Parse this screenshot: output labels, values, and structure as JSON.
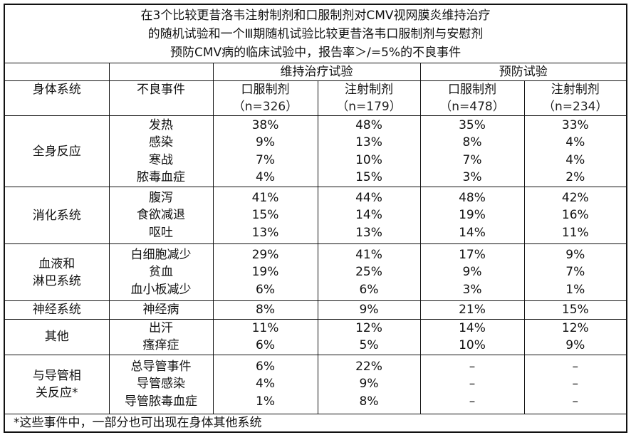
{
  "title_lines": [
    "在3个比较更昔洛韦注射制剂和口服制剂对CMV视网膜炎维持治疗",
    "的随机试验和一个Ⅲ期随机试验比较更昔洛韦口服制剂与安慰剂",
    "预防CMV病的临床试验中，报告率＞/=5%的不良事件"
  ],
  "header": {
    "body_system": "身体系统",
    "adverse_event": "不良事件",
    "maintenance_trial": "维持治疗试验",
    "prevention_trial": "预防试验",
    "columns": [
      {
        "label": "口服制剂",
        "n": "（n=326）"
      },
      {
        "label": "注射制剂",
        "n": "（n=179）"
      },
      {
        "label": "口服制剂",
        "n": "（n=478）"
      },
      {
        "label": "注射制剂",
        "n": "（n=234）"
      }
    ]
  },
  "groups": [
    {
      "system": [
        "全身反应"
      ],
      "events": [
        {
          "name": "发热",
          "values": [
            "38%",
            "48%",
            "35%",
            "33%"
          ]
        },
        {
          "name": "感染",
          "values": [
            "9%",
            "13%",
            "8%",
            "4%"
          ]
        },
        {
          "name": "寒战",
          "values": [
            "7%",
            "10%",
            "7%",
            "4%"
          ]
        },
        {
          "name": "脓毒血症",
          "values": [
            "4%",
            "15%",
            "3%",
            "2%"
          ]
        }
      ]
    },
    {
      "system": [
        "消化系统"
      ],
      "events": [
        {
          "name": "腹泻",
          "values": [
            "41%",
            "44%",
            "48%",
            "42%"
          ]
        },
        {
          "name": "食欲减退",
          "values": [
            "15%",
            "14%",
            "19%",
            "16%"
          ]
        },
        {
          "name": "呕吐",
          "values": [
            "13%",
            "13%",
            "14%",
            "11%"
          ]
        }
      ]
    },
    {
      "system": [
        "血液和",
        "淋巴系统"
      ],
      "events": [
        {
          "name": "白细胞减少",
          "values": [
            "29%",
            "41%",
            "17%",
            "9%"
          ]
        },
        {
          "name": "贫血",
          "values": [
            "19%",
            "25%",
            "9%",
            "7%"
          ]
        },
        {
          "name": "血小板减少",
          "values": [
            "6%",
            "6%",
            "3%",
            "1%"
          ]
        }
      ]
    },
    {
      "system": [
        "神经系统"
      ],
      "events": [
        {
          "name": "神经病",
          "values": [
            "8%",
            "9%",
            "21%",
            "15%"
          ]
        }
      ]
    },
    {
      "system": [
        "其他"
      ],
      "events": [
        {
          "name": "出汗",
          "values": [
            "11%",
            "12%",
            "14%",
            "12%"
          ]
        },
        {
          "name": "瘙痒症",
          "values": [
            "6%",
            "5%",
            "10%",
            "9%"
          ]
        }
      ]
    },
    {
      "system": [
        "与导管相",
        "关反应*"
      ],
      "events": [
        {
          "name": "总导管事件",
          "values": [
            "6%",
            "22%",
            "–",
            "–"
          ]
        },
        {
          "name": "导管感染",
          "values": [
            "4%",
            "9%",
            "–",
            "–"
          ]
        },
        {
          "name": "导管脓毒血症",
          "values": [
            "1%",
            "8%",
            "–",
            "–"
          ]
        }
      ]
    }
  ],
  "footnote": "*这些事件中，一部分也可出现在身体其他系统"
}
